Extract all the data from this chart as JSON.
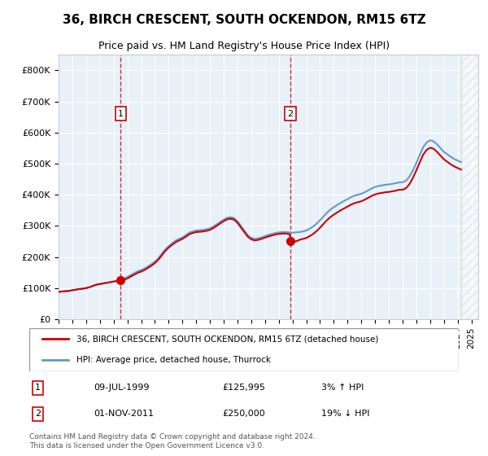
{
  "title": "36, BIRCH CRESCENT, SOUTH OCKENDON, RM15 6TZ",
  "subtitle": "Price paid vs. HM Land Registry's House Price Index (HPI)",
  "ylabel_ticks": [
    "£0",
    "£100K",
    "£200K",
    "£300K",
    "£400K",
    "£500K",
    "£600K",
    "£700K",
    "£800K"
  ],
  "ytick_values": [
    0,
    100000,
    200000,
    300000,
    400000,
    500000,
    600000,
    700000,
    800000
  ],
  "ylim": [
    0,
    850000
  ],
  "xlim_start": 1995.0,
  "xlim_end": 2025.5,
  "hpi_color": "#6699cc",
  "price_color": "#cc0000",
  "bg_color": "#e8f0f8",
  "sale1_date": 1999.52,
  "sale1_price": 125995,
  "sale2_date": 2011.83,
  "sale2_price": 250000,
  "legend_label1": "36, BIRCH CRESCENT, SOUTH OCKENDON, RM15 6TZ (detached house)",
  "legend_label2": "HPI: Average price, detached house, Thurrock",
  "annotation1_label": "1",
  "annotation1_date": "09-JUL-1999",
  "annotation1_price": "£125,995",
  "annotation1_hpi": "3% ↑ HPI",
  "annotation2_label": "2",
  "annotation2_date": "01-NOV-2011",
  "annotation2_price": "£250,000",
  "annotation2_hpi": "19% ↓ HPI",
  "footer": "Contains HM Land Registry data © Crown copyright and database right 2024.\nThis data is licensed under the Open Government Licence v3.0.",
  "hpi_data_x": [
    1995.0,
    1995.25,
    1995.5,
    1995.75,
    1996.0,
    1996.25,
    1996.5,
    1996.75,
    1997.0,
    1997.25,
    1997.5,
    1997.75,
    1998.0,
    1998.25,
    1998.5,
    1998.75,
    1999.0,
    1999.25,
    1999.5,
    1999.75,
    2000.0,
    2000.25,
    2000.5,
    2000.75,
    2001.0,
    2001.25,
    2001.5,
    2001.75,
    2002.0,
    2002.25,
    2002.5,
    2002.75,
    2003.0,
    2003.25,
    2003.5,
    2003.75,
    2004.0,
    2004.25,
    2004.5,
    2004.75,
    2005.0,
    2005.25,
    2005.5,
    2005.75,
    2006.0,
    2006.25,
    2006.5,
    2006.75,
    2007.0,
    2007.25,
    2007.5,
    2007.75,
    2008.0,
    2008.25,
    2008.5,
    2008.75,
    2009.0,
    2009.25,
    2009.5,
    2009.75,
    2010.0,
    2010.25,
    2010.5,
    2010.75,
    2011.0,
    2011.25,
    2011.5,
    2011.75,
    2012.0,
    2012.25,
    2012.5,
    2012.75,
    2013.0,
    2013.25,
    2013.5,
    2013.75,
    2014.0,
    2014.25,
    2014.5,
    2014.75,
    2015.0,
    2015.25,
    2015.5,
    2015.75,
    2016.0,
    2016.25,
    2016.5,
    2016.75,
    2017.0,
    2017.25,
    2017.5,
    2017.75,
    2018.0,
    2018.25,
    2018.5,
    2018.75,
    2019.0,
    2019.25,
    2019.5,
    2019.75,
    2020.0,
    2020.25,
    2020.5,
    2020.75,
    2021.0,
    2021.25,
    2021.5,
    2021.75,
    2022.0,
    2022.25,
    2022.5,
    2022.75,
    2023.0,
    2023.25,
    2023.5,
    2023.75,
    2024.0,
    2024.25
  ],
  "hpi_data_y": [
    88000,
    89000,
    90000,
    91000,
    93000,
    95000,
    97000,
    98000,
    100000,
    103000,
    107000,
    111000,
    113000,
    115000,
    117000,
    119000,
    121000,
    123000,
    126000,
    130000,
    136000,
    142000,
    148000,
    154000,
    158000,
    163000,
    170000,
    177000,
    185000,
    196000,
    210000,
    224000,
    235000,
    244000,
    252000,
    258000,
    263000,
    270000,
    278000,
    282000,
    285000,
    286000,
    287000,
    289000,
    292000,
    298000,
    305000,
    313000,
    320000,
    326000,
    328000,
    325000,
    315000,
    300000,
    285000,
    270000,
    262000,
    258000,
    260000,
    263000,
    267000,
    271000,
    274000,
    277000,
    279000,
    280000,
    280000,
    279000,
    278000,
    279000,
    280000,
    282000,
    285000,
    291000,
    298000,
    307000,
    318000,
    330000,
    342000,
    352000,
    360000,
    367000,
    374000,
    380000,
    386000,
    392000,
    397000,
    400000,
    403000,
    408000,
    414000,
    420000,
    425000,
    428000,
    430000,
    432000,
    433000,
    435000,
    437000,
    440000,
    440000,
    445000,
    458000,
    478000,
    502000,
    528000,
    553000,
    568000,
    575000,
    572000,
    562000,
    550000,
    538000,
    530000,
    522000,
    515000,
    510000,
    505000
  ],
  "price_data_x": [
    1995.0,
    1995.25,
    1995.5,
    1995.75,
    1996.0,
    1996.25,
    1996.5,
    1996.75,
    1997.0,
    1997.25,
    1997.5,
    1997.75,
    1998.0,
    1998.25,
    1998.5,
    1998.75,
    1999.0,
    1999.25,
    1999.5,
    1999.75,
    2000.0,
    2000.25,
    2000.5,
    2000.75,
    2001.0,
    2001.25,
    2001.5,
    2001.75,
    2002.0,
    2002.25,
    2002.5,
    2002.75,
    2003.0,
    2003.25,
    2003.5,
    2003.75,
    2004.0,
    2004.25,
    2004.5,
    2004.75,
    2005.0,
    2005.25,
    2005.5,
    2005.75,
    2006.0,
    2006.25,
    2006.5,
    2006.75,
    2007.0,
    2007.25,
    2007.5,
    2007.75,
    2008.0,
    2008.25,
    2008.5,
    2008.75,
    2009.0,
    2009.25,
    2009.5,
    2009.75,
    2010.0,
    2010.25,
    2010.5,
    2010.75,
    2011.0,
    2011.25,
    2011.5,
    2011.75,
    2012.0,
    2012.25,
    2012.5,
    2012.75,
    2013.0,
    2013.25,
    2013.5,
    2013.75,
    2014.0,
    2014.25,
    2014.5,
    2014.75,
    2015.0,
    2015.25,
    2015.5,
    2015.75,
    2016.0,
    2016.25,
    2016.5,
    2016.75,
    2017.0,
    2017.25,
    2017.5,
    2017.75,
    2018.0,
    2018.25,
    2018.5,
    2018.75,
    2019.0,
    2019.25,
    2019.5,
    2019.75,
    2020.0,
    2020.25,
    2020.5,
    2020.75,
    2021.0,
    2021.25,
    2021.5,
    2021.75,
    2022.0,
    2022.25,
    2022.5,
    2022.75,
    2023.0,
    2023.25,
    2023.5,
    2023.75,
    2024.0,
    2024.25
  ],
  "price_data_y": [
    88000,
    89000,
    90000,
    91000,
    93000,
    95000,
    97000,
    98000,
    100000,
    103000,
    107000,
    111000,
    113000,
    115000,
    117000,
    119000,
    121000,
    123000,
    125995,
    125995,
    131000,
    137000,
    143000,
    149000,
    153000,
    158000,
    165000,
    172000,
    180000,
    191000,
    205000,
    219000,
    230000,
    239000,
    247000,
    253000,
    258000,
    265000,
    273000,
    277000,
    280000,
    281000,
    282000,
    284000,
    287000,
    293000,
    300000,
    308000,
    315000,
    321000,
    323000,
    320000,
    310000,
    295000,
    280000,
    265000,
    257000,
    253000,
    255000,
    258000,
    262000,
    266000,
    269000,
    272000,
    274000,
    275000,
    275000,
    274000,
    250000,
    250000,
    255000,
    258000,
    261000,
    267000,
    274000,
    283000,
    294000,
    306000,
    318000,
    328000,
    336000,
    343000,
    350000,
    356000,
    362000,
    368000,
    373000,
    376000,
    379000,
    384000,
    390000,
    396000,
    401000,
    404000,
    406000,
    408000,
    409000,
    411000,
    413000,
    416000,
    416000,
    421000,
    434000,
    454000,
    478000,
    504000,
    529000,
    544000,
    551000,
    548000,
    538000,
    526000,
    514000,
    506000,
    498000,
    491000,
    486000,
    481000
  ]
}
